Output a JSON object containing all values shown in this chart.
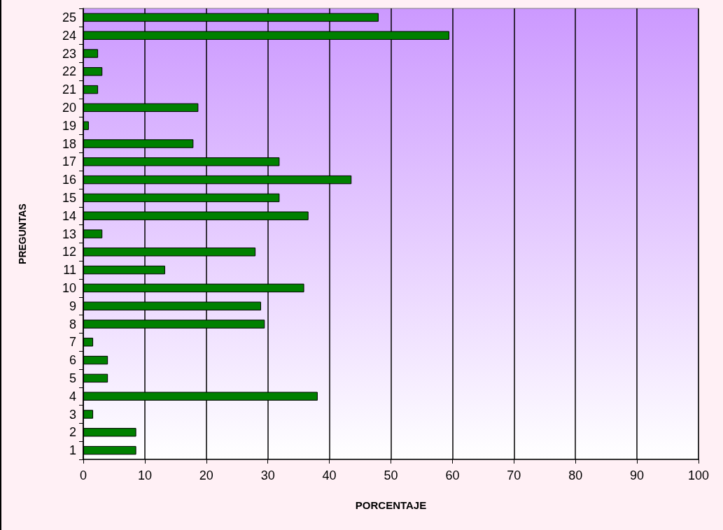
{
  "chart_data": {
    "type": "bar",
    "orientation": "horizontal",
    "xlabel": "PORCENTAJE",
    "ylabel": "PREGUNTAS",
    "categories": [
      "25",
      "24",
      "23",
      "22",
      "21",
      "20",
      "19",
      "18",
      "17",
      "16",
      "15",
      "14",
      "13",
      "12",
      "11",
      "10",
      "9",
      "8",
      "7",
      "6",
      "5",
      "4",
      "3",
      "2",
      "1"
    ],
    "values": [
      48,
      59.5,
      2.4,
      3.1,
      2.4,
      18.7,
      0.9,
      17.9,
      31.9,
      43.6,
      31.9,
      36.6,
      3.1,
      28,
      13.3,
      35.9,
      28.9,
      29.5,
      1.6,
      4,
      4,
      38.1,
      1.6,
      8.6,
      8.6
    ],
    "color": "#008000",
    "xlim": [
      0,
      100
    ],
    "xticks": [
      0,
      10,
      20,
      30,
      40,
      50,
      60,
      70,
      80,
      90,
      100
    ],
    "grid": "x"
  }
}
